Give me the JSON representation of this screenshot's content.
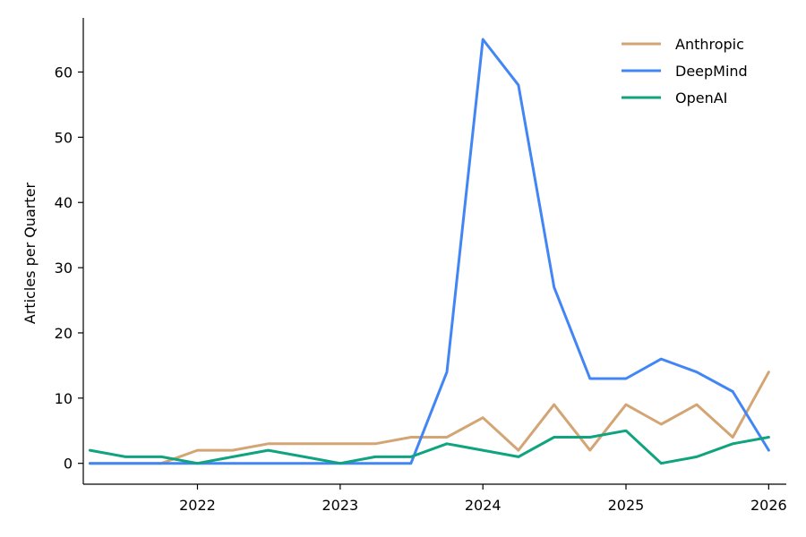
{
  "chart_data": {
    "type": "line",
    "title": "",
    "xlabel": "",
    "ylabel": "Articles per Quarter",
    "x_type": "date",
    "xlim": [
      "2021-03-15",
      "2026-02-15"
    ],
    "ylim": [
      -3.2,
      68.3
    ],
    "x_ticks": [
      {
        "date": "2022-01-01",
        "label": "2022"
      },
      {
        "date": "2023-01-01",
        "label": "2023"
      },
      {
        "date": "2024-01-01",
        "label": "2024"
      },
      {
        "date": "2025-01-01",
        "label": "2025"
      },
      {
        "date": "2026-01-01",
        "label": "2026"
      }
    ],
    "y_ticks": [
      {
        "value": 0,
        "label": "0"
      },
      {
        "value": 10,
        "label": "10"
      },
      {
        "value": 20,
        "label": "20"
      },
      {
        "value": 30,
        "label": "30"
      },
      {
        "value": 40,
        "label": "40"
      },
      {
        "value": 50,
        "label": "50"
      },
      {
        "value": 60,
        "label": "60"
      }
    ],
    "grid": false,
    "legend_position": "top-right",
    "x": [
      "2021-04-01",
      "2021-07-01",
      "2021-10-01",
      "2022-01-01",
      "2022-04-01",
      "2022-07-01",
      "2022-10-01",
      "2023-01-01",
      "2023-04-01",
      "2023-07-01",
      "2023-10-01",
      "2024-01-01",
      "2024-04-01",
      "2024-07-01",
      "2024-10-01",
      "2025-01-01",
      "2025-04-01",
      "2025-07-01",
      "2025-10-01",
      "2026-01-01"
    ],
    "series": [
      {
        "name": "Anthropic",
        "color": "#D4A574",
        "values": [
          0,
          0,
          0,
          2,
          2,
          3,
          3,
          3,
          3,
          4,
          4,
          7,
          2,
          9,
          2,
          9,
          6,
          9,
          4,
          14
        ]
      },
      {
        "name": "DeepMind",
        "color": "#4285F4",
        "values": [
          0,
          0,
          0,
          0,
          0,
          0,
          0,
          0,
          0,
          0,
          14,
          65,
          58,
          27,
          13,
          13,
          16,
          14,
          11,
          2
        ]
      },
      {
        "name": "OpenAI",
        "color": "#10A37F",
        "values": [
          2,
          1,
          1,
          0,
          1,
          2,
          1,
          0,
          1,
          1,
          3,
          2,
          1,
          4,
          4,
          5,
          0,
          1,
          3,
          4
        ]
      }
    ]
  }
}
